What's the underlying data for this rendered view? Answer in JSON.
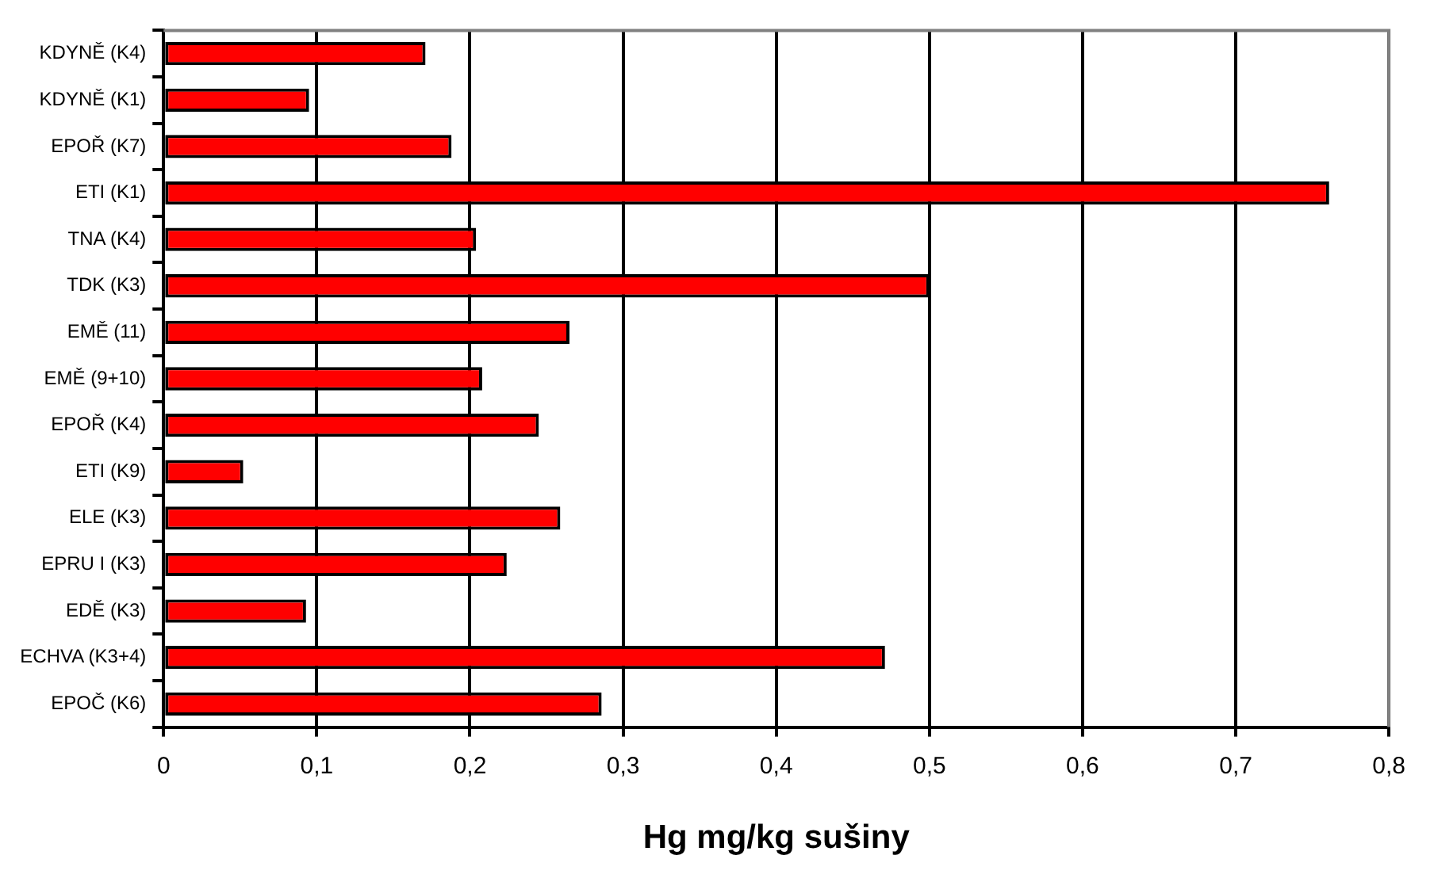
{
  "chart_data": {
    "type": "bar",
    "orientation": "horizontal",
    "xlabel": "Hg mg/kg sušiny",
    "categories": [
      "KDYNĚ (K4)",
      "KDYNĚ (K1)",
      "EPOŘ (K7)",
      "ETI (K1)",
      "TNA (K4)",
      "TDK (K3)",
      "EMĚ (11)",
      "EMĚ (9+10)",
      "EPOŘ (K4)",
      "ETI (K9)",
      "ELE (K3)",
      "EPRU I (K3)",
      "EDĚ (K3)",
      "ECHVA (K3+4)",
      "EPOČ (K6)"
    ],
    "values": [
      0.171,
      0.095,
      0.188,
      0.761,
      0.204,
      0.5,
      0.265,
      0.208,
      0.245,
      0.052,
      0.259,
      0.224,
      0.093,
      0.471,
      0.286
    ],
    "color": "#ff0000",
    "xlim": [
      0,
      0.8
    ],
    "xticks": [
      {
        "value": 0,
        "label": "0"
      },
      {
        "value": 0.1,
        "label": "0,1"
      },
      {
        "value": 0.2,
        "label": "0,2"
      },
      {
        "value": 0.3,
        "label": "0,3"
      },
      {
        "value": 0.4,
        "label": "0,4"
      },
      {
        "value": 0.5,
        "label": "0,5"
      },
      {
        "value": 0.6,
        "label": "0,6"
      },
      {
        "value": 0.7,
        "label": "0,7"
      },
      {
        "value": 0.8,
        "label": "0,8"
      }
    ],
    "grid": "x",
    "legend": false
  }
}
